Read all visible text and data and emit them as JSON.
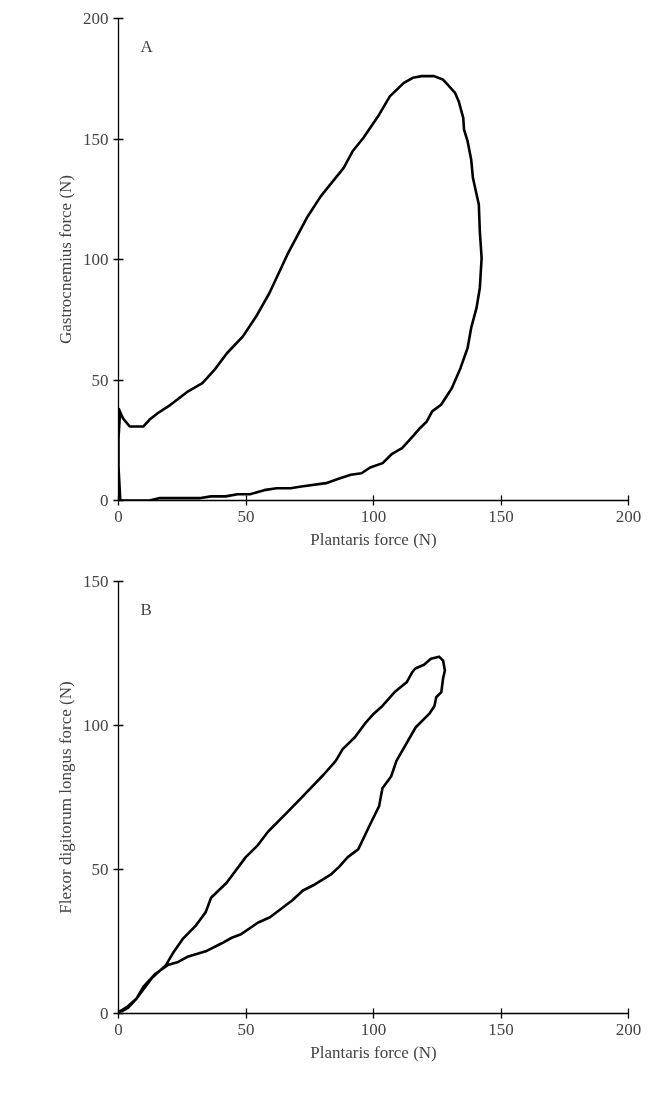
{
  "chart_data": [
    {
      "type": "line",
      "xlabel": "Plantaris force (N)",
      "ylabel": "Gastrocnemius force (N)",
      "annotations": [
        "A"
      ],
      "xlim": [
        0,
        200
      ],
      "ylim": [
        0,
        200
      ],
      "xticks": [
        0,
        50,
        100,
        150,
        200
      ],
      "yticks": [
        0,
        50,
        100,
        150,
        200
      ],
      "line_style": "solid",
      "series": [
        {
          "color": "#000000",
          "x": [
            0,
            1.7,
            4.4,
            9.7,
            12.1,
            15.5,
            20.4,
            27.3,
            32.9,
            37.7,
            42.6,
            48.8,
            54.4,
            59.2,
            66.2,
            73.8,
            79.3,
            88.3,
            91.8,
            96,
            102.2,
            106.4,
            111.9,
            115.4,
            118.9,
            123.7,
            127.2,
            132,
            133.4,
            135.2,
            135.5,
            136.9,
            138.3,
            139,
            141.3,
            141.7,
            142.4,
            141.7,
            140.4,
            138.3,
            136.9,
            134.1,
            130.7,
            126.5,
            123,
            120.9,
            118.2,
            115.4,
            111.2,
            107.1,
            103.6,
            98.7,
            95.3,
            91.1,
            86.3,
            81.4,
            71.7,
            67.5,
            62,
            57.1,
            51.6,
            46.7,
            42,
            36.3,
            32.2,
            16.2,
            12.1,
            2.4,
            0.7,
            0,
            0,
            0,
            0.6
          ],
          "values": [
            38.3,
            34.2,
            30.7,
            30.7,
            33.5,
            36.3,
            39.7,
            45.3,
            48.7,
            54.3,
            61.2,
            68.1,
            77.1,
            86.1,
            102,
            117.2,
            126.2,
            138,
            144.9,
            150.4,
            160.1,
            167.7,
            173.3,
            175.4,
            176.1,
            176.1,
            174.7,
            169.1,
            165.7,
            158.8,
            153.9,
            149.1,
            141.5,
            133.8,
            122.8,
            111.7,
            100.6,
            88.2,
            79.9,
            71.6,
            63.3,
            54.9,
            46.6,
            39.7,
            37,
            32.8,
            30,
            26.6,
            21.7,
            19.2,
            15.5,
            13.7,
            11.3,
            10.7,
            9,
            7.2,
            5.8,
            5.1,
            5.1,
            4.3,
            2.6,
            2.6,
            1.7,
            1.7,
            1,
            1,
            0,
            0,
            0,
            14.1,
            19.7,
            25.9,
            36.5
          ]
        }
      ]
    },
    {
      "type": "line",
      "xlabel": "Plantaris force (N)",
      "ylabel": "Flexor digitorum longus force (N)",
      "annotations": [
        "B"
      ],
      "xlim": [
        0,
        200
      ],
      "ylim": [
        0,
        150
      ],
      "xticks": [
        0,
        50,
        100,
        150,
        200
      ],
      "yticks": [
        0,
        50,
        100,
        150
      ],
      "line_style": "solid",
      "series": [
        {
          "color": "#000000",
          "x": [
            0,
            3.7,
            7.1,
            9.8,
            14.5,
            19.3,
            23.4,
            27.4,
            34.2,
            40.3,
            44.4,
            47.8,
            54.6,
            59.4,
            68.2,
            72.3,
            77,
            83.2,
            86.5,
            89.9,
            94,
            98.8,
            102.2,
            103.5,
            106.9,
            109,
            116.5,
            121.9,
            123.9,
            124.6,
            126.6,
            127.3,
            128,
            127.3,
            125.7,
            122.5,
            119.8,
            116.4,
            115.1,
            113,
            108.3,
            106.9,
            103.5,
            100.1,
            96.7,
            92.7,
            87.9,
            85.2,
            80.4,
            71.6,
            64.8,
            58.7,
            54.6,
            49.9,
            42.4,
            36.3,
            34.2,
            30.2,
            25.4,
            21.3,
            18.6,
            13.2,
            7.1,
            3.7,
            1
          ],
          "values": [
            0.4,
            2.5,
            5.2,
            9.3,
            13.8,
            16.8,
            17.9,
            19.8,
            21.6,
            24.3,
            26.3,
            27.4,
            31.5,
            33.4,
            39.3,
            42.7,
            44.8,
            48.2,
            50.9,
            54.3,
            57,
            65.9,
            72,
            78.2,
            82.3,
            87.7,
            99.3,
            104.1,
            106.8,
            109.8,
            111.6,
            116.4,
            119.1,
            122.5,
            123.9,
            123.2,
            121.1,
            119.8,
            118.4,
            115,
            111.6,
            110.2,
            106.8,
            104.1,
            100.7,
            95.9,
            91.8,
            87.7,
            82.9,
            74.8,
            68.6,
            63.2,
            58.4,
            54.3,
            45.4,
            40.2,
            35.2,
            30.4,
            26.1,
            20.9,
            16.8,
            12.4,
            5.2,
            2,
            0.7
          ]
        }
      ]
    }
  ]
}
